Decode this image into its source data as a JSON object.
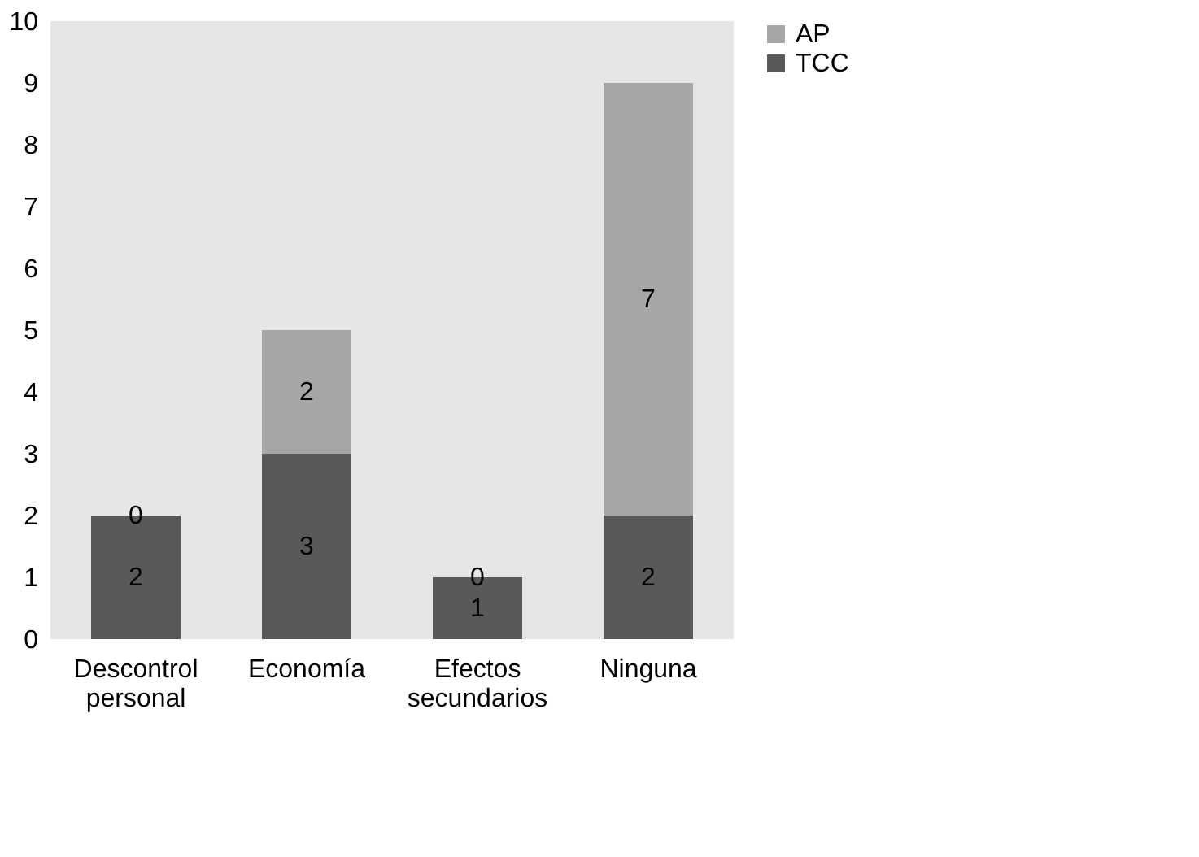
{
  "chart_data": {
    "type": "bar",
    "stacked": true,
    "categories": [
      "Descontrol personal",
      "Economía",
      "Efectos secundarios",
      "Ninguna"
    ],
    "series": [
      {
        "name": "TCC",
        "color": "#595959",
        "values": [
          2,
          3,
          1,
          2
        ]
      },
      {
        "name": "AP",
        "color": "#a6a6a6",
        "values": [
          0,
          2,
          0,
          7
        ]
      }
    ],
    "ylim": [
      0,
      10
    ],
    "yticks": [
      0,
      1,
      2,
      3,
      4,
      5,
      6,
      7,
      8,
      9,
      10
    ],
    "grid": false,
    "legend": "right",
    "data_labels": true
  }
}
